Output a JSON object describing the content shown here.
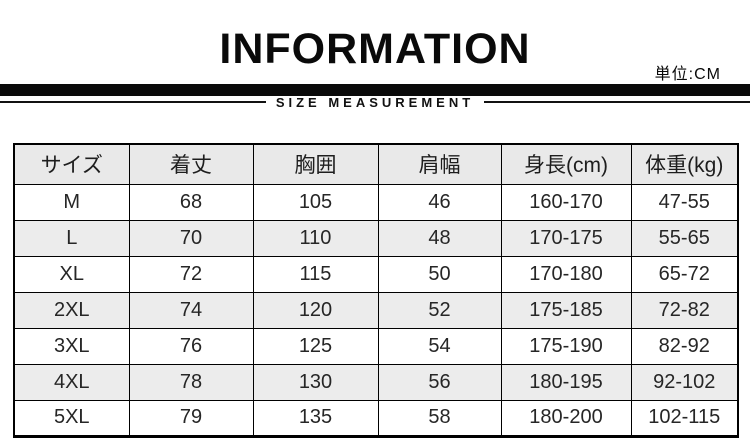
{
  "header": {
    "title": "INFORMATION",
    "unit_label": "単位:CM",
    "section_label": "SIZE MEASUREMENT"
  },
  "chart_data": {
    "type": "table",
    "title": "INFORMATION",
    "subtitle": "SIZE MEASUREMENT",
    "unit": "CM",
    "columns": [
      "サイズ",
      "着丈",
      "胸囲",
      "肩幅",
      "身長(cm)",
      "体重(kg)"
    ],
    "rows": [
      [
        "M",
        "68",
        "105",
        "46",
        "160-170",
        "47-55"
      ],
      [
        "L",
        "70",
        "110",
        "48",
        "170-175",
        "55-65"
      ],
      [
        "XL",
        "72",
        "115",
        "50",
        "170-180",
        "65-72"
      ],
      [
        "2XL",
        "74",
        "120",
        "52",
        "175-185",
        "72-82"
      ],
      [
        "3XL",
        "76",
        "125",
        "54",
        "175-190",
        "82-92"
      ],
      [
        "4XL",
        "78",
        "130",
        "56",
        "180-195",
        "92-102"
      ],
      [
        "5XL",
        "79",
        "135",
        "58",
        "180-200",
        "102-115"
      ]
    ]
  },
  "colors": {
    "accent": "#0a0a0a",
    "header_row_bg": "#e9e9e9",
    "zebra_row_bg": "#ececec",
    "border": "#000000"
  }
}
